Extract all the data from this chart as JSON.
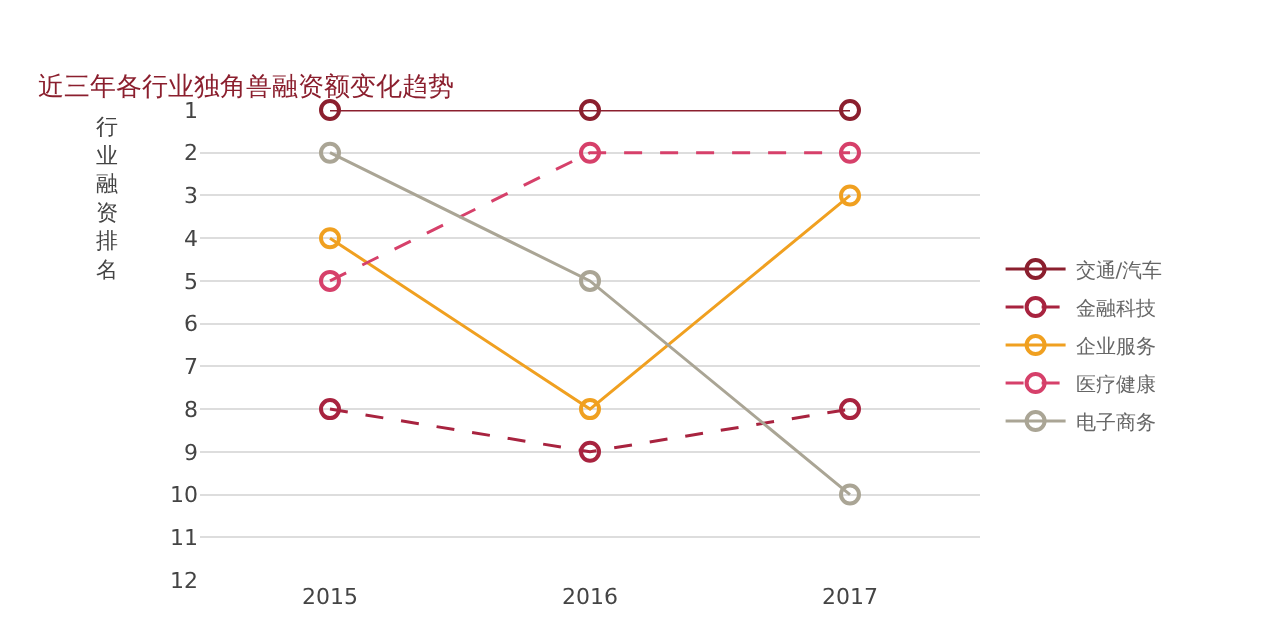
{
  "chart_data": {
    "type": "line",
    "title": "近三年各行业独角兽融资额变化趋势",
    "ylabel": "行业融资排名",
    "categories": [
      "2015",
      "2016",
      "2017"
    ],
    "series": [
      {
        "name": "交通/汽车",
        "color": "#8b1f2e",
        "values": [
          1,
          1,
          1
        ],
        "line_style": "solid"
      },
      {
        "name": "金融科技",
        "color": "#a8233f",
        "values": [
          8,
          9,
          8
        ],
        "line_style": "dashed"
      },
      {
        "name": "企业服务",
        "color": "#f0a020",
        "values": [
          4,
          8,
          3
        ],
        "line_style": "solid"
      },
      {
        "name": "医疗健康",
        "color": "#d6406a",
        "values": [
          5,
          2,
          2
        ],
        "line_style": "dashed"
      },
      {
        "name": "电子商务",
        "color": "#aaa595",
        "values": [
          2,
          5,
          10
        ],
        "line_style": "solid"
      }
    ],
    "ylim": [
      12,
      1
    ],
    "yticks": [
      1,
      2,
      3,
      4,
      5,
      6,
      7,
      8,
      9,
      10,
      11,
      12
    ],
    "grid": "y",
    "legend": "right",
    "marker": "circle"
  }
}
